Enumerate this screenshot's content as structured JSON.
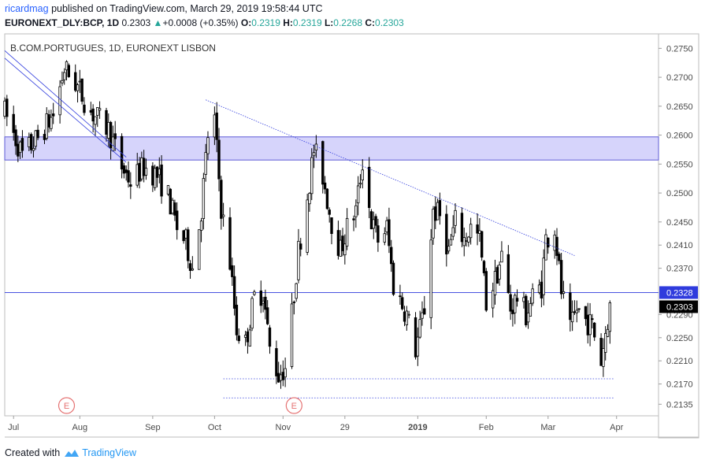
{
  "header": {
    "user": "ricardmag",
    "published": "published on TradingView.com, March 29, 2019 19:58:44 UTC",
    "symbol": "EURONEXT_DLY:BCP, 1D",
    "last": "0.2303",
    "change_arrow": "▲",
    "change": "+0.0008 (+0.35%)",
    "o_label": "O:",
    "o_value": "0.2319",
    "h_label": "H:",
    "h_value": "0.2319",
    "l_label": "L:",
    "l_value": "0.2268",
    "c_label": "C:",
    "c_value": "0.2303"
  },
  "footer": {
    "created_with": "Created with",
    "brand": "TradingView",
    "logo_icon": "tradingview-cloud-icon"
  },
  "colors": {
    "zone_fill": "#d6d4fb",
    "zone_border": "#5d5bd6",
    "line_color": "#2f3bdd",
    "candle": "#000000",
    "price_badge": "#2f3bdd",
    "last_badge": "#000000",
    "earnings": "#e57373"
  },
  "chart_data": {
    "type": "candlestick",
    "title": "B.COM.PORTUGUES, 1D, EURONEXT LISBON",
    "ylim": [
      0.2115,
      0.2775
    ],
    "y_ticks": [
      "0.2750",
      "0.2700",
      "0.2650",
      "0.2600",
      "0.2550",
      "0.2500",
      "0.2450",
      "0.2410",
      "0.2370",
      "0.2290",
      "0.2250",
      "0.2210",
      "0.2170",
      "0.2135"
    ],
    "x_ticks": [
      "Jul",
      "Aug",
      "Sep",
      "Oct",
      "Nov",
      "29",
      "2019",
      "Feb",
      "Mar",
      "Apr"
    ],
    "x_range": [
      "2018-06-28",
      "2019-04-20"
    ],
    "resistance_zone": [
      0.2557,
      0.2597
    ],
    "horizontal_lines": [
      {
        "price": 0.2328,
        "label": "0.2328"
      },
      {
        "price": 0.2179,
        "style": "dotted",
        "from": "2018-10-05",
        "to": "2019-03-31"
      },
      {
        "price": 0.2146,
        "style": "dotted",
        "from": "2018-10-05",
        "to": "2019-03-31"
      }
    ],
    "trendlines": [
      {
        "from": [
          "2018-06-28",
          0.2746
        ],
        "to": [
          "2018-08-22",
          0.2562
        ]
      },
      {
        "from": [
          "2018-06-28",
          0.2733
        ],
        "to": [
          "2018-08-22",
          0.2553
        ]
      },
      {
        "from": [
          "2018-09-27",
          0.2661
        ],
        "to": [
          "2019-03-13",
          0.2392
        ]
      }
    ],
    "last_price": {
      "value": 0.2303,
      "label": "0.2303"
    },
    "earnings_markers": [
      {
        "date": "2018-07-26",
        "label": "E"
      },
      {
        "date": "2018-11-06",
        "label": "E"
      }
    ],
    "anchors": [
      [
        "2018-06-28",
        0.264
      ],
      [
        "2018-07-06",
        0.2565
      ],
      [
        "2018-07-13",
        0.2595
      ],
      [
        "2018-07-20",
        0.2635
      ],
      [
        "2018-07-25",
        0.2715
      ],
      [
        "2018-07-30",
        0.269
      ],
      [
        "2018-08-06",
        0.264
      ],
      [
        "2018-08-14",
        0.261
      ],
      [
        "2018-08-20",
        0.2545
      ],
      [
        "2018-08-24",
        0.252
      ],
      [
        "2018-08-30",
        0.2545
      ],
      [
        "2018-09-05",
        0.253
      ],
      [
        "2018-09-10",
        0.2495
      ],
      [
        "2018-09-14",
        0.244
      ],
      [
        "2018-09-18",
        0.2415
      ],
      [
        "2018-09-21",
        0.237
      ],
      [
        "2018-09-25",
        0.247
      ],
      [
        "2018-09-28",
        0.26
      ],
      [
        "2018-10-01",
        0.2625
      ],
      [
        "2018-10-04",
        0.2475
      ],
      [
        "2018-10-08",
        0.238
      ],
      [
        "2018-10-11",
        0.2265
      ],
      [
        "2018-10-15",
        0.224
      ],
      [
        "2018-10-19",
        0.232
      ],
      [
        "2018-10-23",
        0.233
      ],
      [
        "2018-10-26",
        0.223
      ],
      [
        "2018-10-30",
        0.2185
      ],
      [
        "2018-11-02",
        0.22
      ],
      [
        "2018-11-05",
        0.229
      ],
      [
        "2018-11-08",
        0.24
      ],
      [
        "2018-11-13",
        0.252
      ],
      [
        "2018-11-15",
        0.2575
      ],
      [
        "2018-11-19",
        0.253
      ],
      [
        "2018-11-23",
        0.245
      ],
      [
        "2018-11-27",
        0.24
      ],
      [
        "2018-11-30",
        0.244
      ],
      [
        "2018-12-04",
        0.247
      ],
      [
        "2018-12-07",
        0.2555
      ],
      [
        "2018-12-11",
        0.245
      ],
      [
        "2018-12-14",
        0.242
      ],
      [
        "2018-12-18",
        0.244
      ],
      [
        "2018-12-21",
        0.234
      ],
      [
        "2018-12-27",
        0.229
      ],
      [
        "2018-12-31",
        0.223
      ],
      [
        "2019-01-04",
        0.23
      ],
      [
        "2019-01-08",
        0.247
      ],
      [
        "2019-01-11",
        0.246
      ],
      [
        "2019-01-15",
        0.24
      ],
      [
        "2019-01-18",
        0.245
      ],
      [
        "2019-01-22",
        0.242
      ],
      [
        "2019-01-25",
        0.244
      ],
      [
        "2019-01-29",
        0.242
      ],
      [
        "2019-02-01",
        0.231
      ],
      [
        "2019-02-05",
        0.235
      ],
      [
        "2019-02-08",
        0.239
      ],
      [
        "2019-02-12",
        0.23
      ],
      [
        "2019-02-15",
        0.232
      ],
      [
        "2019-02-19",
        0.229
      ],
      [
        "2019-02-22",
        0.232
      ],
      [
        "2019-02-26",
        0.234
      ],
      [
        "2019-02-28",
        0.242
      ],
      [
        "2019-03-04",
        0.244
      ],
      [
        "2019-03-07",
        0.233
      ],
      [
        "2019-03-11",
        0.226
      ],
      [
        "2019-03-14",
        0.23
      ],
      [
        "2019-03-18",
        0.228
      ],
      [
        "2019-03-21",
        0.227
      ],
      [
        "2019-03-25",
        0.221
      ],
      [
        "2019-03-27",
        0.226
      ],
      [
        "2019-03-29",
        0.2303
      ]
    ]
  }
}
